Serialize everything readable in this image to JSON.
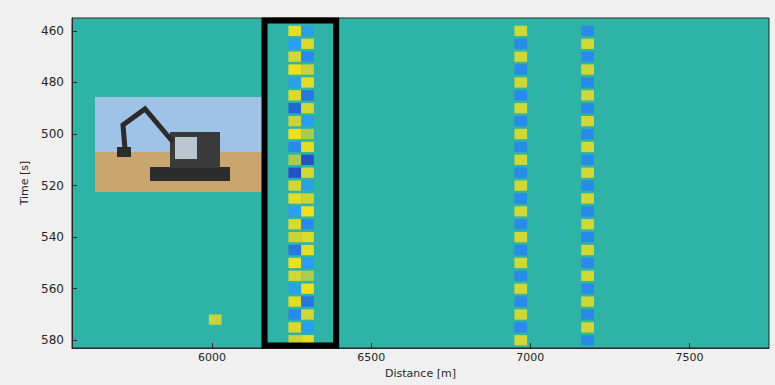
{
  "chart_data": {
    "type": "heatmap",
    "x_label": "Distance [m]",
    "y_label": "Time [s]",
    "xlim": [
      5560,
      7750
    ],
    "xticks": [
      6000,
      6500,
      7000,
      7500
    ],
    "ylim": [
      455,
      583
    ],
    "yticks": [
      460,
      480,
      500,
      520,
      540,
      560,
      580
    ],
    "grid": false,
    "color_range": [
      -1,
      1
    ],
    "cell_width": 40,
    "cell_height": 4,
    "cells": [
      [
        6260,
        460,
        0.8
      ],
      [
        6260,
        465,
        -0.5
      ],
      [
        6260,
        470,
        0.6
      ],
      [
        6260,
        475,
        0.9
      ],
      [
        6260,
        480,
        -0.4
      ],
      [
        6260,
        485,
        0.7
      ],
      [
        6260,
        490,
        -0.8
      ],
      [
        6260,
        495,
        0.5
      ],
      [
        6260,
        500,
        0.9
      ],
      [
        6260,
        505,
        -0.6
      ],
      [
        6260,
        510,
        0.4
      ],
      [
        6260,
        515,
        -0.9
      ],
      [
        6260,
        520,
        0.6
      ],
      [
        6260,
        525,
        0.8
      ],
      [
        6260,
        530,
        -0.5
      ],
      [
        6260,
        535,
        0.7
      ],
      [
        6260,
        540,
        0.5
      ],
      [
        6260,
        545,
        -0.7
      ],
      [
        6260,
        550,
        0.9
      ],
      [
        6260,
        555,
        0.6
      ],
      [
        6260,
        560,
        -0.4
      ],
      [
        6260,
        565,
        0.8
      ],
      [
        6260,
        570,
        -0.6
      ],
      [
        6260,
        575,
        0.7
      ],
      [
        6260,
        580,
        0.5
      ],
      [
        6300,
        460,
        -0.4
      ],
      [
        6300,
        465,
        0.7
      ],
      [
        6300,
        470,
        -0.6
      ],
      [
        6300,
        475,
        0.5
      ],
      [
        6300,
        480,
        0.8
      ],
      [
        6300,
        485,
        -0.7
      ],
      [
        6300,
        490,
        0.6
      ],
      [
        6300,
        495,
        -0.5
      ],
      [
        6300,
        500,
        0.4
      ],
      [
        6300,
        505,
        0.8
      ],
      [
        6300,
        510,
        -0.9
      ],
      [
        6300,
        515,
        0.6
      ],
      [
        6300,
        520,
        -0.4
      ],
      [
        6300,
        525,
        0.5
      ],
      [
        6300,
        530,
        0.9
      ],
      [
        6300,
        535,
        -0.6
      ],
      [
        6300,
        540,
        0.7
      ],
      [
        6300,
        545,
        0.8
      ],
      [
        6300,
        550,
        -0.5
      ],
      [
        6300,
        555,
        0.4
      ],
      [
        6300,
        560,
        0.9
      ],
      [
        6300,
        565,
        -0.7
      ],
      [
        6300,
        570,
        0.6
      ],
      [
        6300,
        575,
        -0.5
      ],
      [
        6300,
        580,
        0.8
      ],
      [
        6970,
        460,
        0.6
      ],
      [
        6970,
        465,
        -0.6
      ],
      [
        6970,
        470,
        0.6
      ],
      [
        6970,
        475,
        -0.6
      ],
      [
        6970,
        480,
        0.6
      ],
      [
        6970,
        485,
        -0.6
      ],
      [
        6970,
        490,
        0.6
      ],
      [
        6970,
        495,
        -0.6
      ],
      [
        6970,
        500,
        0.6
      ],
      [
        6970,
        505,
        -0.6
      ],
      [
        6970,
        510,
        0.6
      ],
      [
        6970,
        515,
        -0.6
      ],
      [
        6970,
        520,
        0.6
      ],
      [
        6970,
        525,
        -0.6
      ],
      [
        6970,
        530,
        0.6
      ],
      [
        6970,
        535,
        -0.6
      ],
      [
        6970,
        540,
        0.6
      ],
      [
        6970,
        545,
        -0.6
      ],
      [
        6970,
        550,
        0.6
      ],
      [
        6970,
        555,
        -0.6
      ],
      [
        6970,
        560,
        0.6
      ],
      [
        6970,
        565,
        -0.6
      ],
      [
        6970,
        570,
        0.6
      ],
      [
        6970,
        575,
        -0.6
      ],
      [
        6970,
        580,
        0.6
      ],
      [
        7180,
        460,
        -0.6
      ],
      [
        7180,
        465,
        0.6
      ],
      [
        7180,
        470,
        -0.6
      ],
      [
        7180,
        475,
        0.6
      ],
      [
        7180,
        480,
        -0.6
      ],
      [
        7180,
        485,
        0.6
      ],
      [
        7180,
        490,
        -0.6
      ],
      [
        7180,
        495,
        0.6
      ],
      [
        7180,
        500,
        -0.6
      ],
      [
        7180,
        505,
        0.6
      ],
      [
        7180,
        510,
        -0.6
      ],
      [
        7180,
        515,
        0.6
      ],
      [
        7180,
        520,
        -0.6
      ],
      [
        7180,
        525,
        0.6
      ],
      [
        7180,
        530,
        -0.6
      ],
      [
        7180,
        535,
        0.6
      ],
      [
        7180,
        540,
        -0.6
      ],
      [
        7180,
        545,
        0.6
      ],
      [
        7180,
        550,
        -0.6
      ],
      [
        7180,
        555,
        0.6
      ],
      [
        7180,
        560,
        -0.6
      ],
      [
        7180,
        565,
        0.6
      ],
      [
        7180,
        570,
        -0.6
      ],
      [
        7180,
        575,
        0.6
      ],
      [
        7180,
        580,
        -0.6
      ],
      [
        6010,
        572,
        0.5
      ]
    ],
    "box": {
      "x": [
        6165,
        6390
      ],
      "y": [
        456,
        582
      ],
      "color": "#000000"
    }
  }
}
